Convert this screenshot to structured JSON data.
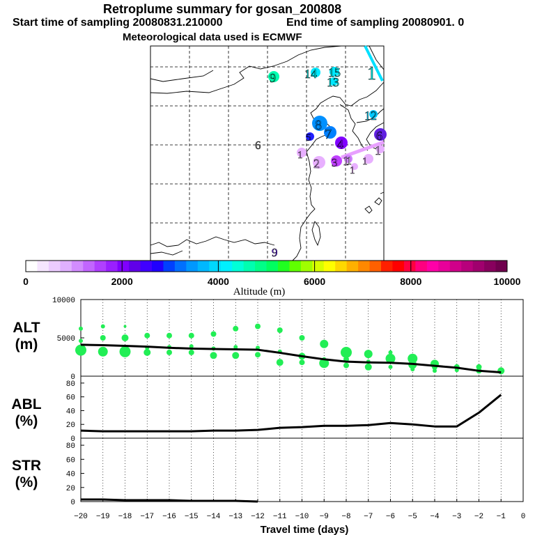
{
  "header": {
    "title": "Retroplume summary for gosan_200808",
    "start_label": "Start time of sampling 20080831.210000",
    "end_label": "End time of sampling 20080901.     0",
    "met_label": "Meteorological data used is ECMWF"
  },
  "map_labels": [
    {
      "text": "9",
      "color": "#00e8a0",
      "size": 18
    },
    {
      "text": "14",
      "color": "#00e8e0",
      "size": 18
    },
    {
      "text": "15",
      "color": "#00e8e0",
      "size": 18
    },
    {
      "text": "13",
      "color": "#00e8e0",
      "size": 18
    },
    {
      "text": "1",
      "color": "#00e8e0",
      "size": 26
    },
    {
      "text": "12",
      "color": "#00c8f0",
      "size": 18
    },
    {
      "text": "8",
      "color": "#0090ff",
      "size": 20
    },
    {
      "text": "7",
      "color": "#0090ff",
      "size": 20
    },
    {
      "text": "5",
      "color": "#2020ff",
      "size": 15
    },
    {
      "text": "6",
      "color": "#6020e0",
      "size": 18
    },
    {
      "text": "4",
      "color": "#8000ff",
      "size": 18
    },
    {
      "text": "6",
      "color": "#808080",
      "size": 17
    },
    {
      "text": "1",
      "color": "#e8b0ff",
      "size": 15
    },
    {
      "text": "2",
      "color": "#e8b0ff",
      "size": 18
    },
    {
      "text": "3",
      "color": "#c040ff",
      "size": 17
    },
    {
      "text": "1",
      "color": "#e8b0ff",
      "size": 18
    },
    {
      "text": "1",
      "color": "#e8b0ff",
      "size": 15
    },
    {
      "text": "1",
      "color": "#ffffff",
      "size": 16
    },
    {
      "text": "1",
      "color": "#e8b0ff",
      "size": 15
    },
    {
      "text": "1",
      "color": "#e8b0ff",
      "size": 18
    },
    {
      "text": "9",
      "color": "#6020e0",
      "size": 17
    }
  ],
  "colorbar": {
    "ticks": [
      "0",
      "2000",
      "4000",
      "6000",
      "8000",
      "10000"
    ],
    "title": "Altitude (m)",
    "colors": [
      "#ffffff",
      "#f6e6ff",
      "#ecccff",
      "#e0b0ff",
      "#d28cff",
      "#c266ff",
      "#b040ff",
      "#9a20ff",
      "#8000ff",
      "#6000e8",
      "#4000ff",
      "#2000ff",
      "#0040ff",
      "#0070ff",
      "#0098ff",
      "#00b8ff",
      "#00d8ff",
      "#00f0ff",
      "#00ffd8",
      "#00ffb0",
      "#00ff88",
      "#00ff60",
      "#20ff20",
      "#60ff00",
      "#a0ff00",
      "#d8ff00",
      "#ffff00",
      "#ffd800",
      "#ffb000",
      "#ff8800",
      "#ff6000",
      "#ff2000",
      "#ff0000",
      "#ff0040",
      "#ff0080",
      "#ff00a8",
      "#e8009a",
      "#d0008a",
      "#b8007c",
      "#a0006e",
      "#88005e",
      "#70004e"
    ]
  },
  "chart_data": [
    {
      "type": "line",
      "ylabel": "ALT\n(m)",
      "ylim": [
        0,
        10000
      ],
      "yticks": [
        "0",
        "5000",
        "10000"
      ],
      "x": [
        -20,
        -19,
        -18,
        -17,
        -16,
        -15,
        -14,
        -13,
        -12,
        -11,
        -10,
        -9,
        -8,
        -7,
        -6,
        -5,
        -4,
        -3,
        -2,
        -1
      ],
      "values": [
        4100,
        4050,
        3950,
        3850,
        3700,
        3600,
        3550,
        3500,
        3450,
        3050,
        2600,
        2200,
        1900,
        1800,
        1750,
        1600,
        1350,
        1100,
        700,
        500
      ],
      "scatter": [
        {
          "x": -20,
          "y": 6200,
          "s": 3
        },
        {
          "x": -20,
          "y": 4600,
          "s": 3
        },
        {
          "x": -20,
          "y": 3400,
          "s": 8
        },
        {
          "x": -19,
          "y": 6500,
          "s": 3
        },
        {
          "x": -19,
          "y": 5000,
          "s": 4
        },
        {
          "x": -19,
          "y": 3200,
          "s": 7
        },
        {
          "x": -18,
          "y": 6500,
          "s": 2
        },
        {
          "x": -18,
          "y": 5000,
          "s": 5
        },
        {
          "x": -18,
          "y": 3200,
          "s": 8
        },
        {
          "x": -17,
          "y": 5300,
          "s": 4
        },
        {
          "x": -17,
          "y": 3700,
          "s": 3
        },
        {
          "x": -17,
          "y": 3100,
          "s": 5
        },
        {
          "x": -16,
          "y": 5300,
          "s": 4
        },
        {
          "x": -16,
          "y": 3800,
          "s": 3
        },
        {
          "x": -16,
          "y": 3100,
          "s": 4
        },
        {
          "x": -15,
          "y": 5300,
          "s": 4
        },
        {
          "x": -15,
          "y": 3900,
          "s": 3
        },
        {
          "x": -15,
          "y": 3100,
          "s": 4
        },
        {
          "x": -14,
          "y": 5500,
          "s": 4
        },
        {
          "x": -14,
          "y": 3600,
          "s": 3
        },
        {
          "x": -14,
          "y": 2700,
          "s": 5
        },
        {
          "x": -13,
          "y": 6200,
          "s": 4
        },
        {
          "x": -13,
          "y": 3800,
          "s": 3
        },
        {
          "x": -13,
          "y": 2700,
          "s": 5
        },
        {
          "x": -12,
          "y": 6500,
          "s": 4
        },
        {
          "x": -12,
          "y": 3700,
          "s": 3
        },
        {
          "x": -12,
          "y": 2800,
          "s": 4
        },
        {
          "x": -11,
          "y": 6000,
          "s": 4
        },
        {
          "x": -11,
          "y": 3200,
          "s": 3
        },
        {
          "x": -11,
          "y": 1800,
          "s": 5
        },
        {
          "x": -10,
          "y": 5000,
          "s": 4
        },
        {
          "x": -10,
          "y": 2600,
          "s": 5
        },
        {
          "x": -10,
          "y": 1800,
          "s": 4
        },
        {
          "x": -9,
          "y": 4200,
          "s": 6
        },
        {
          "x": -9,
          "y": 2200,
          "s": 3
        },
        {
          "x": -9,
          "y": 1700,
          "s": 7
        },
        {
          "x": -8,
          "y": 3100,
          "s": 8
        },
        {
          "x": -8,
          "y": 2200,
          "s": 4
        },
        {
          "x": -8,
          "y": 1400,
          "s": 4
        },
        {
          "x": -7,
          "y": 2900,
          "s": 6
        },
        {
          "x": -7,
          "y": 1900,
          "s": 3
        },
        {
          "x": -7,
          "y": 1200,
          "s": 5
        },
        {
          "x": -6,
          "y": 3100,
          "s": 3
        },
        {
          "x": -6,
          "y": 2300,
          "s": 7
        },
        {
          "x": -6,
          "y": 1200,
          "s": 3
        },
        {
          "x": -5,
          "y": 2300,
          "s": 7
        },
        {
          "x": -5,
          "y": 1500,
          "s": 6
        },
        {
          "x": -5,
          "y": 900,
          "s": 3
        },
        {
          "x": -4,
          "y": 1600,
          "s": 6
        },
        {
          "x": -4,
          "y": 1200,
          "s": 4
        },
        {
          "x": -4,
          "y": 700,
          "s": 3
        },
        {
          "x": -3,
          "y": 1200,
          "s": 4
        },
        {
          "x": -3,
          "y": 800,
          "s": 3
        },
        {
          "x": -2,
          "y": 1200,
          "s": 4
        },
        {
          "x": -2,
          "y": 700,
          "s": 4
        },
        {
          "x": -1,
          "y": 700,
          "s": 5
        }
      ]
    },
    {
      "type": "line",
      "ylabel": "ABL\n(%)",
      "ylim": [
        0,
        90
      ],
      "yticks": [
        "0",
        "20",
        "40",
        "60",
        "80"
      ],
      "x": [
        -20,
        -19,
        -18,
        -17,
        -16,
        -15,
        -14,
        -13,
        -12,
        -11,
        -10,
        -9,
        -8,
        -7,
        -6,
        -5,
        -4,
        -3,
        -2,
        -1
      ],
      "values": [
        11,
        10,
        10,
        10,
        10,
        10,
        11,
        11,
        12,
        15,
        16,
        18,
        18,
        19,
        22,
        20,
        17,
        17,
        37,
        63
      ]
    },
    {
      "type": "line",
      "ylabel": "STR\n(%)",
      "ylim": [
        0,
        90
      ],
      "yticks": [
        "0",
        "20",
        "40",
        "60",
        "80"
      ],
      "x": [
        -20,
        -19,
        -18,
        -17,
        -16,
        -15,
        -14,
        -13,
        -12
      ],
      "values": [
        3,
        3,
        2,
        2,
        2,
        1,
        1,
        1,
        0
      ],
      "xticks": [
        "-20",
        "-19",
        "-18",
        "-17",
        "-16",
        "-15",
        "-14",
        "-13",
        "-12",
        "-11",
        "-10",
        "-9",
        "-8",
        "-7",
        "-6",
        "-5",
        "-4",
        "-3",
        "-2",
        "-1",
        "0"
      ],
      "xlabel": "Travel time (days)"
    }
  ]
}
